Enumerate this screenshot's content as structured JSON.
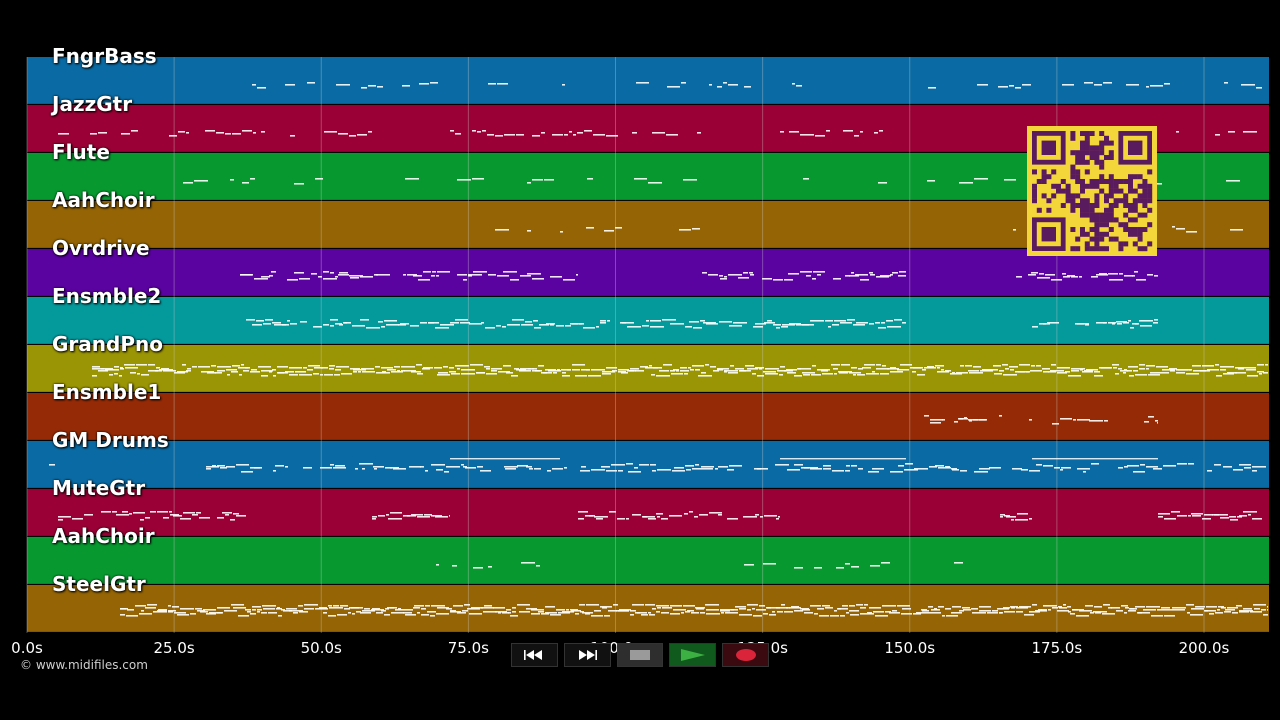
{
  "colors": {
    "background": "#000000",
    "note": "#ffffff",
    "grid": "#cfcfcf",
    "qr_fg": "#5a1a5e",
    "qr_bg": "#f2d63a"
  },
  "tracks": [
    {
      "name": "FngrBass",
      "color": "#0a6aa3"
    },
    {
      "name": "JazzGtr",
      "color": "#9a0035"
    },
    {
      "name": "Flute",
      "color": "#07992f"
    },
    {
      "name": "AahChoir",
      "color": "#946405"
    },
    {
      "name": "Ovrdrive",
      "color": "#5b03a1"
    },
    {
      "name": "Ensmble2",
      "color": "#04999b"
    },
    {
      "name": "GrandPno",
      "color": "#9a9504"
    },
    {
      "name": "Ensmble1",
      "color": "#952a06"
    },
    {
      "name": "GM Drums",
      "color": "#0a6aa3"
    },
    {
      "name": "MuteGtr",
      "color": "#9a0035"
    },
    {
      "name": "AahChoir",
      "color": "#07992f"
    },
    {
      "name": "SteelGtr",
      "color": "#946405"
    }
  ],
  "timeline": {
    "ticks": [
      "0.0s",
      "25.0s",
      "50.0s",
      "75.0s",
      "100.0s",
      "125.0s",
      "150.0s",
      "175.0s",
      "200.0s"
    ],
    "tick_values": [
      0,
      25,
      50,
      75,
      100,
      125,
      150,
      175,
      200
    ]
  },
  "copyright": "© www.midifiles.com",
  "transport": [
    {
      "name": "rewind-button",
      "icon": "rewind-icon",
      "bg": "#111111"
    },
    {
      "name": "fast-forward-button",
      "icon": "fast-forward-icon",
      "bg": "#111111"
    },
    {
      "name": "stop-button",
      "icon": "stop-icon",
      "bg": "#2e2e2e"
    },
    {
      "name": "play-button",
      "icon": "play-icon",
      "bg": "#0f5a1c"
    },
    {
      "name": "record-button",
      "icon": "record-icon",
      "bg": "#3a0a10"
    }
  ]
}
